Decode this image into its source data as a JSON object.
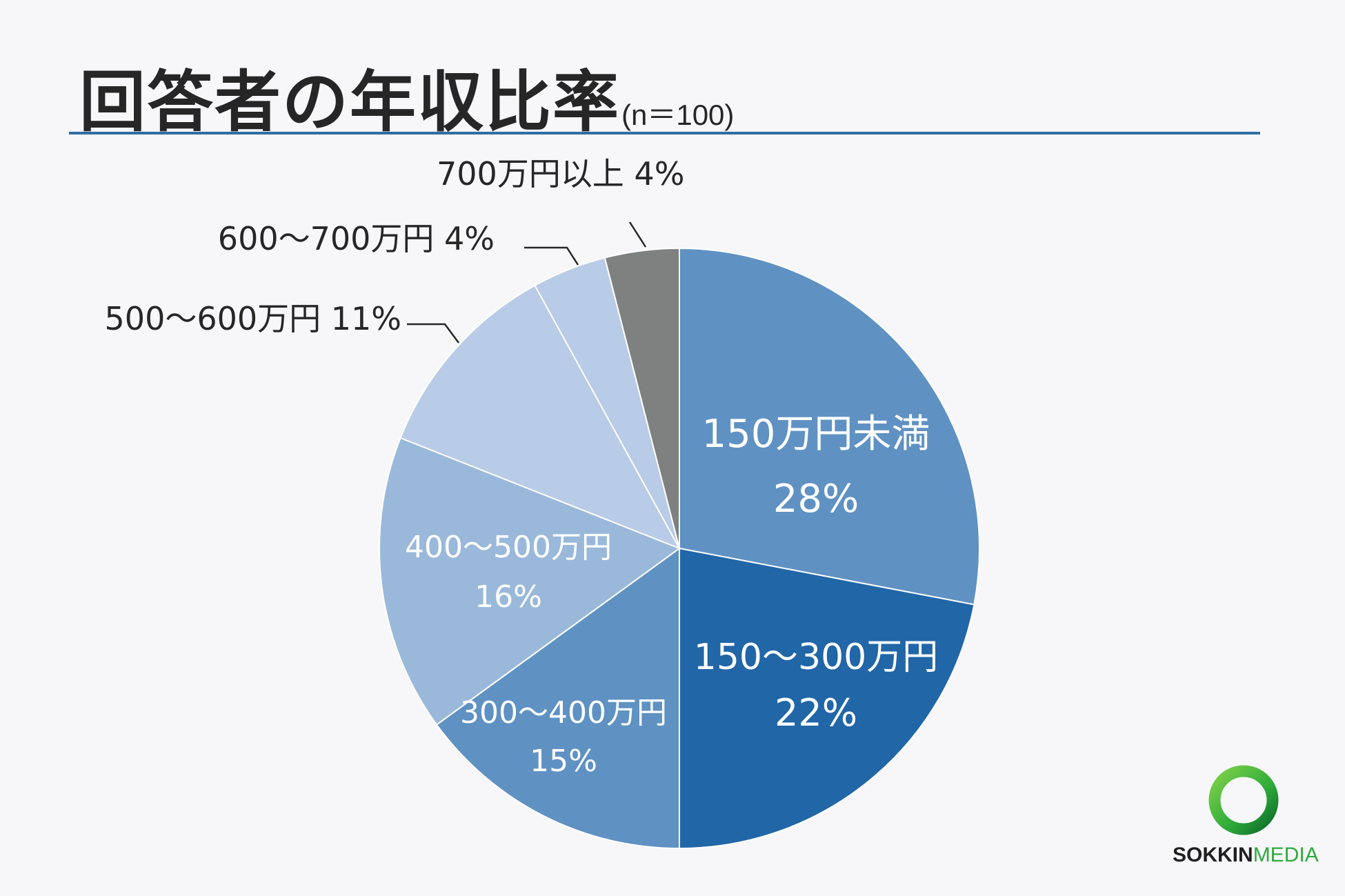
{
  "header": {
    "title": "回答者の年収比率",
    "subtitle": "(n＝100)"
  },
  "chart_data": {
    "type": "pie",
    "title": "回答者の年収比率",
    "subtitle": "(n＝100)",
    "start_angle_deg": 0,
    "direction": "clockwise",
    "slices": [
      {
        "label": "150万円未満",
        "value": 28,
        "value_label": "28%",
        "color": "#5f92c3",
        "label_position": "inside",
        "label_lines": [
          "150万円未満",
          "28%"
        ]
      },
      {
        "label": "150〜300万円",
        "value": 22,
        "value_label": "22%",
        "color": "#2166a7",
        "label_position": "inside",
        "label_lines": [
          "150〜300万円",
          "22%"
        ]
      },
      {
        "label": "300〜400万円",
        "value": 15,
        "value_label": "15%",
        "color": "#5f92c3",
        "label_position": "inside",
        "label_lines": [
          "300〜400万円",
          "15%"
        ]
      },
      {
        "label": "400〜500万円",
        "value": 16,
        "value_label": "16%",
        "color": "#9ab9da",
        "label_position": "inside",
        "label_lines": [
          "400〜500万円",
          "16%"
        ]
      },
      {
        "label": "500〜600万円",
        "value": 11,
        "value_label": "11%",
        "color": "#b8cbe7",
        "label_position": "outside",
        "label_lines": [
          "500〜600万円 11%"
        ]
      },
      {
        "label": "600〜700万円",
        "value": 4,
        "value_label": "4%",
        "color": "#b8cbe7",
        "label_position": "outside",
        "label_lines": [
          "600〜700万円 4%"
        ]
      },
      {
        "label": "700万円以上",
        "value": 4,
        "value_label": "4%",
        "color": "#7f8080",
        "label_position": "outside",
        "label_lines": [
          "700万円以上 4%"
        ]
      }
    ],
    "legend": "none"
  },
  "logo": {
    "word1": "SOKKIN",
    "word2": "MEDIA",
    "ring_color": "#2eaa3a"
  }
}
